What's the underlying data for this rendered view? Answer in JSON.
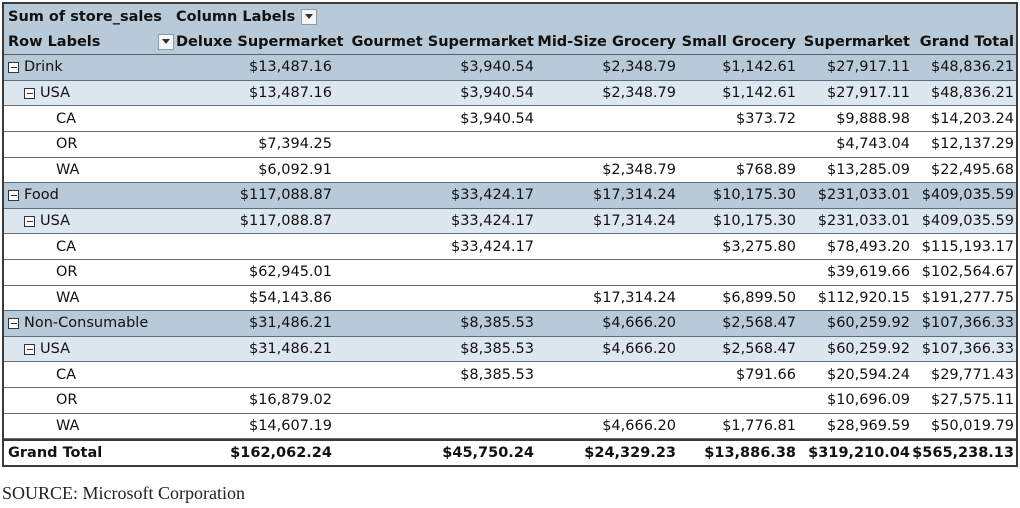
{
  "pivot": {
    "value_field": "Sum of store_sales",
    "column_labels": "Column Labels",
    "row_labels": "Row Labels",
    "columns": [
      "Deluxe Supermarket",
      "Gourmet Supermarket",
      "Mid-Size Grocery",
      "Small Grocery",
      "Supermarket",
      "Grand Total"
    ],
    "rows": [
      {
        "label": "Drink",
        "level": 0,
        "values": [
          "$13,487.16",
          "$3,940.54",
          "$2,348.79",
          "$1,142.61",
          "$27,917.11",
          "$48,836.21"
        ]
      },
      {
        "label": "USA",
        "level": 1,
        "values": [
          "$13,487.16",
          "$3,940.54",
          "$2,348.79",
          "$1,142.61",
          "$27,917.11",
          "$48,836.21"
        ]
      },
      {
        "label": "CA",
        "level": 2,
        "values": [
          "",
          "$3,940.54",
          "",
          "$373.72",
          "$9,888.98",
          "$14,203.24"
        ]
      },
      {
        "label": "OR",
        "level": 2,
        "values": [
          "$7,394.25",
          "",
          "",
          "",
          "$4,743.04",
          "$12,137.29"
        ]
      },
      {
        "label": "WA",
        "level": 2,
        "values": [
          "$6,092.91",
          "",
          "$2,348.79",
          "$768.89",
          "$13,285.09",
          "$22,495.68"
        ]
      },
      {
        "label": "Food",
        "level": 0,
        "values": [
          "$117,088.87",
          "$33,424.17",
          "$17,314.24",
          "$10,175.30",
          "$231,033.01",
          "$409,035.59"
        ]
      },
      {
        "label": "USA",
        "level": 1,
        "values": [
          "$117,088.87",
          "$33,424.17",
          "$17,314.24",
          "$10,175.30",
          "$231,033.01",
          "$409,035.59"
        ]
      },
      {
        "label": "CA",
        "level": 2,
        "values": [
          "",
          "$33,424.17",
          "",
          "$3,275.80",
          "$78,493.20",
          "$115,193.17"
        ]
      },
      {
        "label": "OR",
        "level": 2,
        "values": [
          "$62,945.01",
          "",
          "",
          "",
          "$39,619.66",
          "$102,564.67"
        ]
      },
      {
        "label": "WA",
        "level": 2,
        "values": [
          "$54,143.86",
          "",
          "$17,314.24",
          "$6,899.50",
          "$112,920.15",
          "$191,277.75"
        ]
      },
      {
        "label": "Non-Consumable",
        "level": 0,
        "values": [
          "$31,486.21",
          "$8,385.53",
          "$4,666.20",
          "$2,568.47",
          "$60,259.92",
          "$107,366.33"
        ]
      },
      {
        "label": "USA",
        "level": 1,
        "values": [
          "$31,486.21",
          "$8,385.53",
          "$4,666.20",
          "$2,568.47",
          "$60,259.92",
          "$107,366.33"
        ]
      },
      {
        "label": "CA",
        "level": 2,
        "values": [
          "",
          "$8,385.53",
          "",
          "$791.66",
          "$20,594.24",
          "$29,771.43"
        ]
      },
      {
        "label": "OR",
        "level": 2,
        "values": [
          "$16,879.02",
          "",
          "",
          "",
          "$10,696.09",
          "$27,575.11"
        ]
      },
      {
        "label": "WA",
        "level": 2,
        "values": [
          "$14,607.19",
          "",
          "$4,666.20",
          "$1,776.81",
          "$28,969.59",
          "$50,019.79"
        ]
      }
    ],
    "grand_total": {
      "label": "Grand Total",
      "values": [
        "$162,062.24",
        "$45,750.24",
        "$24,329.23",
        "$13,886.38",
        "$319,210.04",
        "$565,238.13"
      ]
    }
  },
  "source": "SOURCE: Microsoft Corporation"
}
